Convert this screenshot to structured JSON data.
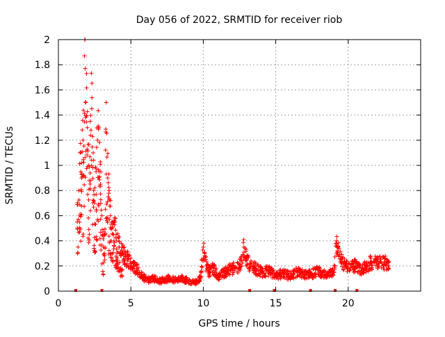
{
  "chart_data": {
    "type": "scatter",
    "title": "Day 056 of 2022, SRMTID for receiver riob",
    "xlabel": "GPS time / hours",
    "ylabel": "SRMTID / TECUs",
    "xlim": [
      0,
      25
    ],
    "ylim": [
      0,
      2
    ],
    "xticks": [
      0,
      5,
      10,
      15,
      20
    ],
    "xtick_labels": [
      "0",
      "5",
      "10",
      "15",
      "20"
    ],
    "yticks": [
      0,
      0.2,
      0.4,
      0.6,
      0.8,
      1,
      1.2,
      1.4,
      1.6,
      1.8,
      2
    ],
    "ytick_labels": [
      "0",
      "0.2",
      "0.4",
      "0.6",
      "0.8",
      "1",
      "1.2",
      "1.4",
      "1.6",
      "1.8",
      "2"
    ],
    "grid": true,
    "marker": "plus",
    "color": "#ff0000",
    "series": [
      {
        "name": "SRMTID",
        "x": [
          1.3,
          1.4,
          1.5,
          1.6,
          1.7,
          1.8,
          1.85,
          1.9,
          2.0,
          2.1,
          2.2,
          2.3,
          2.4,
          2.5,
          2.6,
          2.7,
          2.8,
          2.9,
          3.0,
          3.1,
          3.2,
          3.3,
          3.4,
          3.5,
          3.6,
          3.7,
          3.8,
          3.9,
          4.0,
          4.2,
          4.4,
          4.6,
          4.8,
          5.0,
          5.2,
          5.4,
          5.6,
          5.8,
          6.0,
          6.3,
          6.6,
          7.0,
          7.5,
          8.0,
          8.5,
          9.0,
          9.5,
          9.8,
          10.0,
          10.1,
          10.2,
          10.4,
          10.7,
          11.0,
          11.5,
          12.0,
          12.5,
          12.8,
          13.0,
          13.3,
          13.6,
          14.0,
          14.5,
          15.0,
          15.5,
          16.0,
          16.5,
          17.0,
          17.5,
          18.0,
          18.5,
          19.0,
          19.2,
          19.3,
          19.5,
          19.8,
          20.0,
          20.5,
          21.0,
          21.5,
          22.0,
          22.5,
          22.8
        ],
        "y": [
          0.55,
          0.8,
          1.1,
          0.9,
          1.2,
          1.87,
          1.77,
          1.5,
          1.3,
          1.0,
          1.35,
          1.45,
          1.1,
          0.7,
          0.95,
          1.2,
          1.3,
          0.85,
          0.6,
          0.35,
          0.45,
          1.5,
          0.9,
          0.8,
          0.6,
          0.5,
          0.45,
          0.55,
          0.4,
          0.35,
          0.3,
          0.28,
          0.25,
          0.22,
          0.2,
          0.18,
          0.15,
          0.12,
          0.1,
          0.09,
          0.1,
          0.08,
          0.1,
          0.09,
          0.1,
          0.08,
          0.07,
          0.1,
          0.35,
          0.3,
          0.2,
          0.15,
          0.18,
          0.12,
          0.15,
          0.18,
          0.2,
          0.35,
          0.25,
          0.2,
          0.18,
          0.15,
          0.16,
          0.12,
          0.14,
          0.12,
          0.15,
          0.13,
          0.14,
          0.16,
          0.12,
          0.15,
          0.4,
          0.35,
          0.25,
          0.2,
          0.18,
          0.2,
          0.17,
          0.22,
          0.25,
          0.23,
          0.2
        ]
      }
    ],
    "axis_markers_x": [
      1.2,
      3.0,
      13.2,
      14.9,
      17.4,
      19.1,
      20.6
    ]
  }
}
